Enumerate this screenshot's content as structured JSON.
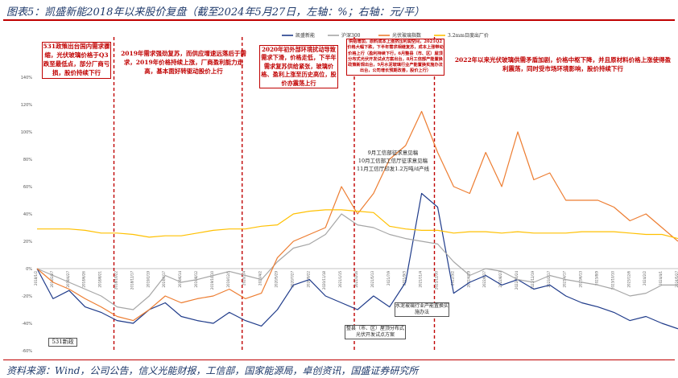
{
  "header": {
    "title": "图表5：凯盛新能2018年以来股价复盘（截至2024年5月27日，左轴：%；右轴：元/平）"
  },
  "footer": {
    "source": "资料来源：Wind，公司公告，信义光能财报，工信部，国家能源局，卓创资讯，国盛证券研究所"
  },
  "chart_data": {
    "type": "line",
    "y_axis": {
      "ticks": [
        "140%",
        "120%",
        "100%",
        "80%",
        "60%",
        "40%",
        "20%",
        "0%",
        "-20%",
        "-40%",
        "-60%"
      ],
      "ylim": [
        -60,
        140
      ]
    },
    "x": [
      "2018/1/2",
      "2018/2/27",
      "2018/4/27",
      "2018/6/26",
      "2018/8/21",
      "2018/10/22",
      "2018/12/17",
      "2019/2/19",
      "2019/4/17",
      "2019/6/14",
      "2019/8/12",
      "2019/10/10",
      "2019/12/5",
      "2020/2/4",
      "2020/4/2",
      "2020/5/29",
      "2020/7/27",
      "2020/9/22",
      "2020/11/18",
      "2021/1/15",
      "2021/3/16",
      "2021/5/13",
      "2021/7/9",
      "2021/9/3",
      "2021/11/4",
      "2021/12/30",
      "2022/3/2",
      "2022/4/29",
      "2022/6/27",
      "2022/8/23",
      "2022/10/24",
      "2022/12/19",
      "2023/2/17",
      "2023/4/17",
      "2023/6/13",
      "2023/8/9",
      "2023/10/10",
      "2023/12/6",
      "2024/2/2",
      "2024/4/1",
      "2024/5/27"
    ],
    "series": [
      {
        "name": "凯盛新能",
        "color": "#1f3b8a",
        "values": [
          0,
          -22,
          -16,
          -28,
          -32,
          -38,
          -40,
          -30,
          -25,
          -35,
          -38,
          -40,
          -32,
          -38,
          -42,
          -30,
          -12,
          -8,
          -20,
          -25,
          -30,
          -20,
          -28,
          -10,
          55,
          45,
          -18,
          -10,
          -5,
          -12,
          -8,
          -15,
          -12,
          -20,
          -25,
          -28,
          -32,
          -38,
          -35,
          -40,
          -44
        ]
      },
      {
        "name": "沪深300",
        "color": "#a6a6a6",
        "values": [
          0,
          -5,
          -10,
          -15,
          -20,
          -28,
          -30,
          -20,
          -5,
          -10,
          -8,
          -5,
          -2,
          -5,
          -8,
          5,
          15,
          18,
          25,
          40,
          32,
          30,
          25,
          22,
          20,
          18,
          5,
          -5,
          0,
          -2,
          -8,
          -10,
          -5,
          -8,
          -10,
          -12,
          -15,
          -20,
          -18,
          -12,
          -12
        ]
      },
      {
        "name": "光伏玻璃指数",
        "color": "#ed7d31",
        "values": [
          0,
          -10,
          -15,
          -22,
          -28,
          -35,
          -38,
          -30,
          -20,
          -25,
          -22,
          -20,
          -15,
          -22,
          -18,
          8,
          20,
          25,
          30,
          60,
          40,
          55,
          80,
          90,
          115,
          85,
          60,
          55,
          85,
          60,
          100,
          65,
          70,
          50,
          50,
          50,
          45,
          35,
          40,
          30,
          20
        ]
      },
      {
        "name": "3.2mm日度出厂价",
        "color": "#ffc000",
        "values": [
          29,
          29,
          29,
          28,
          26,
          26,
          25,
          23,
          24,
          24,
          26,
          28,
          29,
          29,
          31,
          32,
          40,
          42,
          43,
          43,
          42,
          41,
          31,
          29,
          28,
          28,
          26,
          27,
          27,
          26,
          27,
          26,
          26,
          26,
          27,
          27,
          27,
          26,
          25,
          25,
          22
        ]
      }
    ],
    "legend_position": "top-right"
  },
  "annotations": {
    "a1": "531政策出台国内需求骤缩，光伏玻璃价格于Q3跌至最低点，部分厂商亏损，股价持续下行",
    "a2": "2019年需求强劲复苏，而供应增速远落后于需求，2019年价格持续上涨，厂商盈利能力走高，基本面好转驱动股价上行",
    "a3": "2020年初外部环境扰动导致需求下滑，价格走低，下半年需求复苏供给紧张，玻璃价格、盈利上涨至历史高位，股价亦震荡上行",
    "a4": "供给增加，原料成本上涨挤压利润空间，2021Q2价格大幅下跌，下半年需求相继复苏，成本上涨带动价格上行（盈利持续下行，6月整县（市、区）屋顶分布式光伏开发试点方案出台，8月工信部产能置换政策新规出台，9月水泥玻璃行业产能置换实施办法出台，公司增长预期改善，股价上行）",
    "a5": "2022年以来光伏玻璃供需矛盾加剧，价格中枢下降，并且原材料价格上涨使得盈利震荡，同时受市场环境影响，股价持续下行",
    "b1": "531新政",
    "b2": "9月工信部征求意见稿",
    "b3": "10月工信部工信厅征求意见稿",
    "b4": "11月工信厅印发1.2万吨/d产线",
    "b5": "水泥玻璃行业产能置换实施办法",
    "b6": "整县（市、区）屋顶分布式光伏开发试点方案"
  }
}
